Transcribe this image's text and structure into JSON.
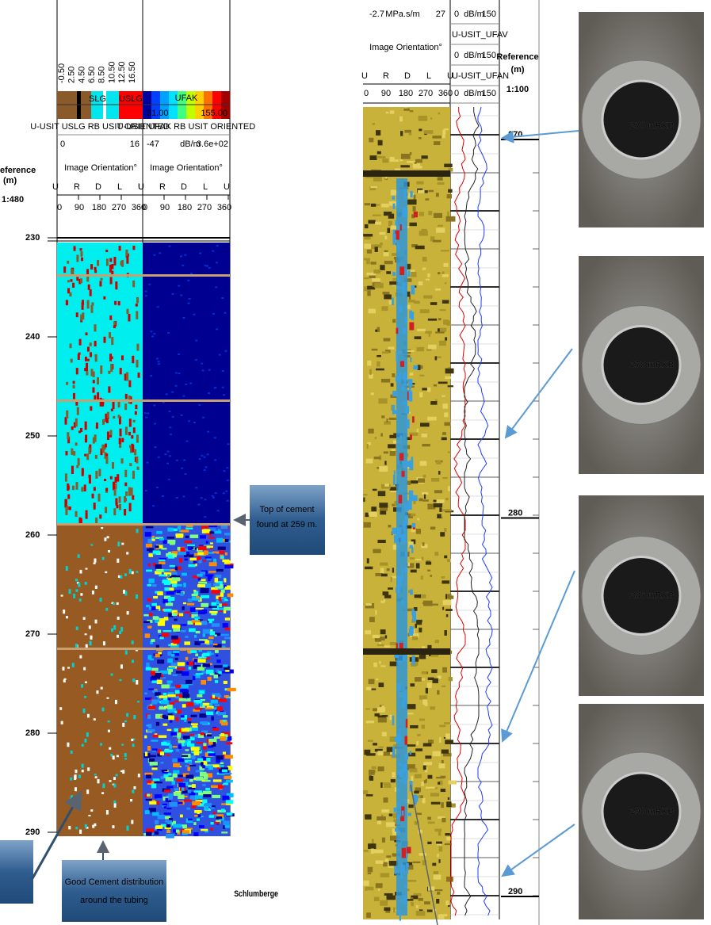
{
  "left_log": {
    "scale_labels": [
      "-0.50",
      "2.50",
      "4.50",
      "6.50",
      "8.50",
      "10.50",
      "12.50",
      "16.50"
    ],
    "slg": "SLG",
    "uslg": "USLG",
    "ufak": "UFAK",
    "ufak_min": "31.00",
    "ufak_max": "155.00",
    "track1_caption": "U-USIT USLG RB USIT ORIENTED",
    "track2_caption": "U-USIT UFAK RB USIT ORIENTED",
    "track1_range": [
      "0",
      "16"
    ],
    "track2_range": [
      "-47",
      "dB/m",
      "3.6e+02"
    ],
    "reference": "eference",
    "unit": "(m)",
    "scale": "1:480",
    "orientation_title": "Image Orientation°",
    "orientation_letters": [
      "U",
      "R",
      "D",
      "L",
      "U"
    ],
    "orientation_degrees": [
      "0",
      "90",
      "180",
      "270",
      "360"
    ],
    "depths": [
      "230",
      "240",
      "250",
      "260",
      "270",
      "280",
      "290"
    ]
  },
  "middle_log": {
    "amp_range": [
      "-2.7",
      "MPa.s/m",
      "27"
    ],
    "curve_headers": [
      [
        "0",
        "dB/m",
        "150"
      ],
      [
        "U-USIT_UFAV"
      ],
      [
        "0",
        "dB/m",
        "150"
      ],
      [
        "U-USIT_UFAN"
      ],
      [
        "0",
        "dB/m",
        "150"
      ]
    ],
    "orientation_title": "Image Orientation°",
    "orientation_letters": [
      "U",
      "R",
      "D",
      "L",
      "U"
    ],
    "orientation_degrees": [
      "0",
      "90",
      "180",
      "270",
      "360"
    ],
    "reference": "Reference",
    "unit": "(m)",
    "scale": "1:100",
    "depths": [
      "270",
      "280",
      "290"
    ]
  },
  "callouts": {
    "top_of_cement": [
      "Top of cement",
      "found at 259 m."
    ],
    "good_cement": [
      "Good Cement distribution",
      "around the tubing"
    ]
  },
  "logo": "Schlumberge",
  "photos": [
    {
      "label": "270 mRKB"
    },
    {
      "label": "278 mRKB"
    },
    {
      "label": "286 mRKB"
    },
    {
      "label": "290 mRKB"
    }
  ]
}
